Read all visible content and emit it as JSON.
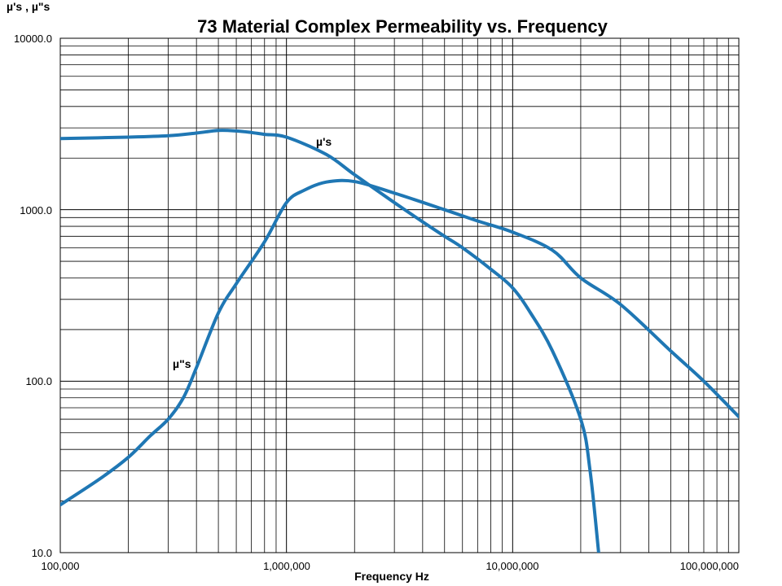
{
  "chart_data": {
    "type": "line",
    "title": "73 Material Complex Permeability vs. Frequency",
    "xlabel": "Frequency Hz",
    "ylabel": "µ's , µ\"s",
    "x_scale": "log",
    "y_scale": "log",
    "xlim": [
      100000,
      100000000
    ],
    "ylim": [
      10,
      10000
    ],
    "grid": true,
    "x_tick_labels": [
      "100,000",
      "1,000,000",
      "10,000,000",
      "100,000,000"
    ],
    "x_tick_values": [
      100000,
      1000000,
      10000000,
      100000000
    ],
    "y_tick_labels": [
      "10.0",
      "100.0",
      "1000.0",
      "10000.0"
    ],
    "y_tick_values": [
      10,
      100,
      1000,
      10000
    ],
    "color": "#1F77B4",
    "series": [
      {
        "name": "µ's",
        "x": [
          100000,
          200000,
          300000,
          400000,
          500000,
          600000,
          700000,
          800000,
          1000000,
          1500000,
          2000000,
          3000000,
          4000000,
          5000000,
          6000000,
          8000000,
          10000000,
          12000000,
          15000000,
          20000000,
          22000000,
          24000000
        ],
        "y": [
          2600,
          2650,
          2700,
          2800,
          2900,
          2880,
          2820,
          2750,
          2650,
          2100,
          1600,
          1100,
          850,
          700,
          600,
          450,
          350,
          250,
          150,
          60,
          30,
          10
        ]
      },
      {
        "name": "µ\"s",
        "x": [
          100000,
          150000,
          200000,
          250000,
          300000,
          350000,
          400000,
          500000,
          600000,
          800000,
          1000000,
          1200000,
          1500000,
          2000000,
          3000000,
          5000000,
          7000000,
          10000000,
          15000000,
          20000000,
          30000000,
          50000000,
          70000000,
          100000000
        ],
        "y": [
          19,
          27,
          36,
          48,
          60,
          80,
          120,
          250,
          370,
          650,
          1100,
          1300,
          1450,
          1460,
          1250,
          1000,
          860,
          740,
          580,
          400,
          280,
          150,
          100,
          62
        ]
      }
    ],
    "annotations": [
      {
        "text": "µ's",
        "x": 1600000,
        "y": 2650
      },
      {
        "text": "µ\"s",
        "x": 300000,
        "y": 120
      }
    ]
  }
}
